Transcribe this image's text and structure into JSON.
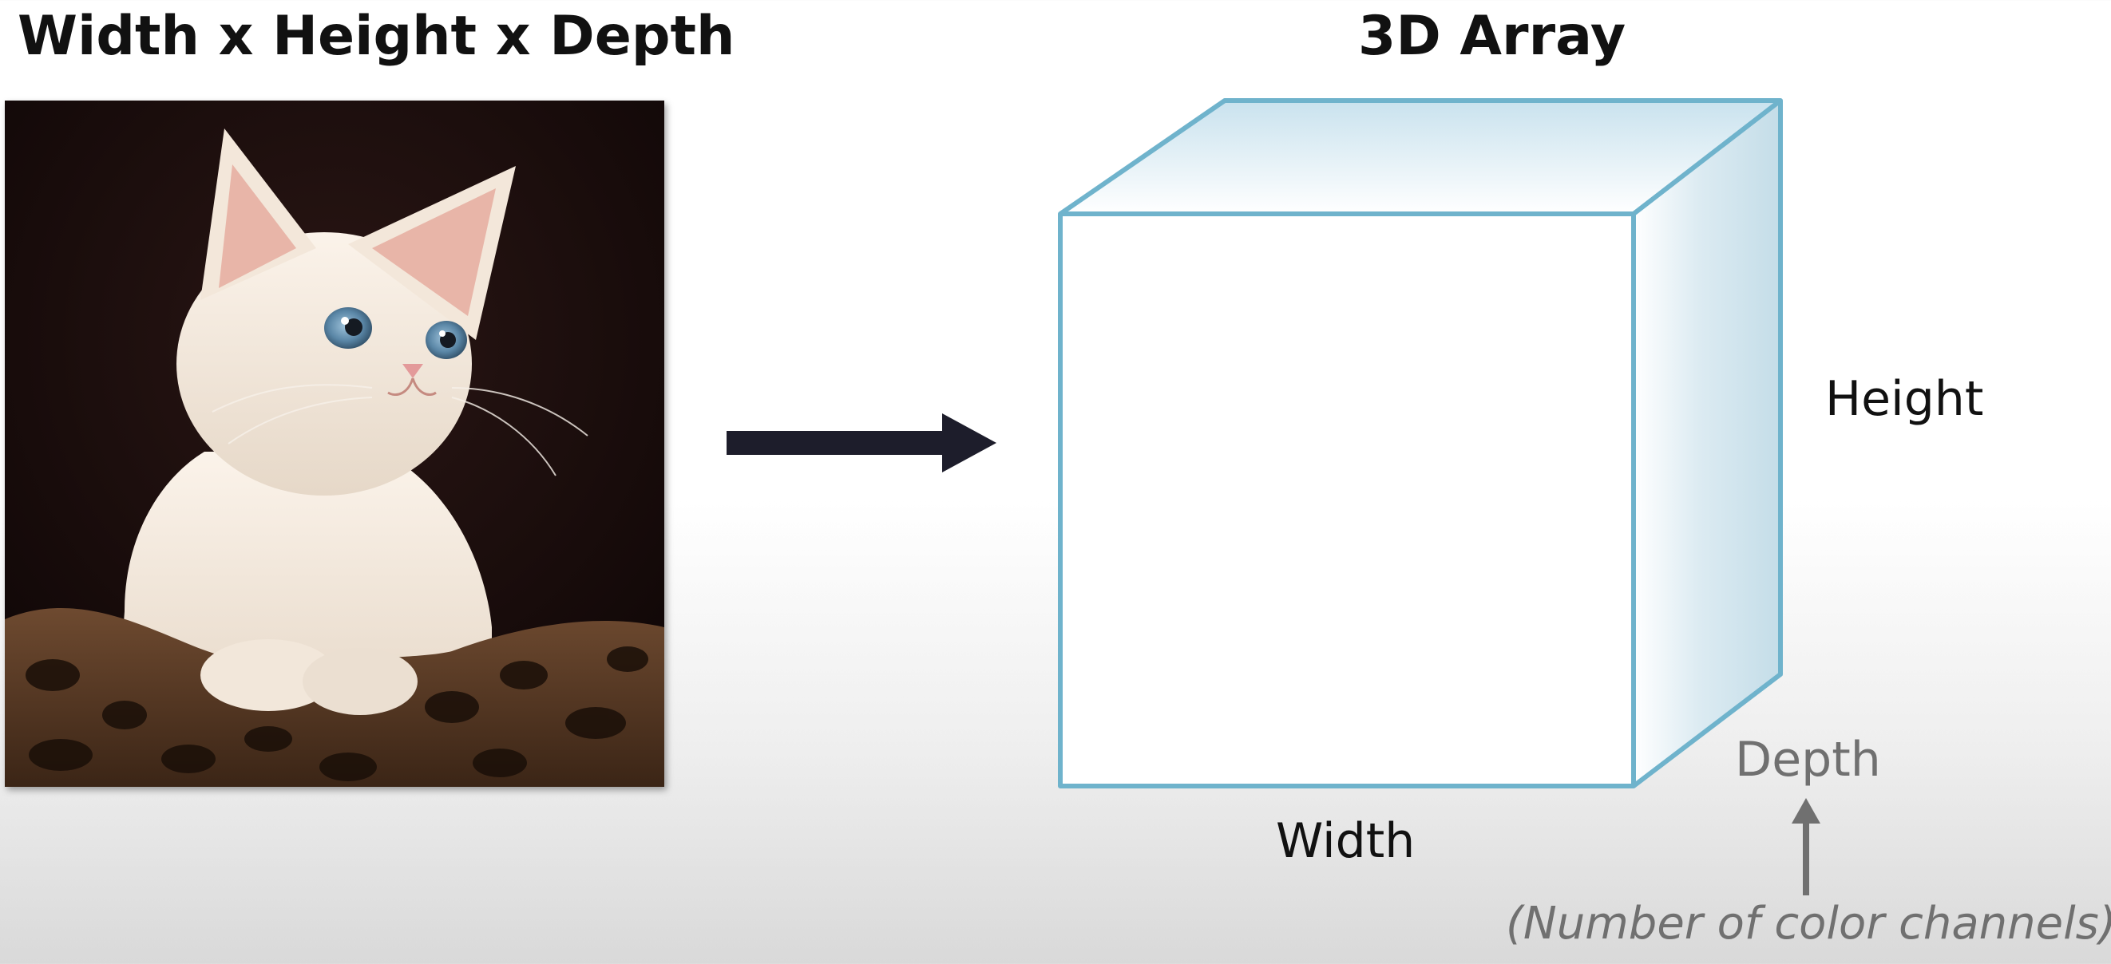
{
  "left_title": "Width x Height x Depth",
  "right_title": "3D Array",
  "image": {
    "subject": "white kitten on leopard-print cushion",
    "background_color": "#160b0b"
  },
  "cube": {
    "edge_color": "#6fb3cc",
    "face_color": "#dcebf2",
    "height_label": "Height",
    "width_label": "Width",
    "depth_label": "Depth",
    "depth_note": "(Number of color channels)"
  },
  "arrow_color": "#1d1d2b",
  "icons": {
    "transform_arrow": "right-arrow-icon",
    "depth_pointer": "up-arrow-icon"
  }
}
